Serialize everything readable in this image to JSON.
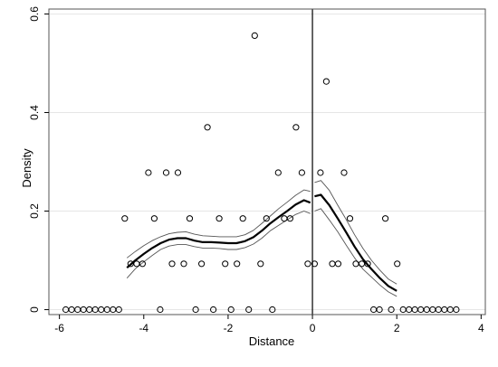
{
  "chart_data": {
    "type": "scatter",
    "title": "",
    "xlabel": "Distance",
    "ylabel": "Density",
    "xlim": [
      -6.25,
      4.1
    ],
    "ylim": [
      -0.01,
      0.61
    ],
    "xticks": [
      -6,
      -4,
      -2,
      0,
      2,
      4
    ],
    "yticks": [
      0,
      0.2,
      0.4,
      0.6
    ],
    "xtick_labels": [
      "-6",
      "-4",
      "-2",
      "0",
      "2",
      "4"
    ],
    "ytick_labels": [
      "0",
      "0.2",
      "0.4",
      "0.6"
    ],
    "grid": "horizontal",
    "cutoff_x": 0,
    "colors": {
      "points": "#000000",
      "fit": "#000000",
      "ci": "#555555",
      "grid": "#e6e6e6",
      "frame": "#555555"
    },
    "bin_points": {
      "x": [
        -5.85,
        -5.71,
        -5.57,
        -5.43,
        -5.29,
        -5.15,
        -5.01,
        -4.87,
        -4.73,
        -4.59,
        -4.45,
        -4.31,
        -4.17,
        -4.03,
        -3.89,
        -3.75,
        -3.61,
        -3.47,
        -3.33,
        -3.19,
        -3.05,
        -2.91,
        -2.77,
        -2.63,
        -2.49,
        -2.35,
        -2.21,
        -2.07,
        -1.93,
        -1.79,
        -1.65,
        -1.51,
        -1.37,
        -1.23,
        -1.09,
        -0.95,
        -0.81,
        -0.67,
        -0.53,
        -0.39,
        -0.25,
        -0.11,
        0.05,
        0.19,
        0.33,
        0.47,
        0.61,
        0.75,
        0.89,
        1.03,
        1.17,
        1.31,
        1.45,
        1.59,
        1.73,
        1.87,
        2.01,
        2.15,
        2.29,
        2.43,
        2.57,
        2.71,
        2.85,
        2.99,
        3.13,
        3.27,
        3.41
      ],
      "y": [
        0,
        0,
        0,
        0,
        0,
        0,
        0,
        0,
        0,
        0,
        0.185,
        0.093,
        0.093,
        0.093,
        0.278,
        0.185,
        0,
        0.278,
        0.093,
        0.278,
        0.093,
        0.185,
        0,
        0.093,
        0.37,
        0,
        0.185,
        0.093,
        0,
        0.093,
        0.185,
        0,
        0.556,
        0.093,
        0.185,
        0,
        0.278,
        0.185,
        0.185,
        0.37,
        0.278,
        0.093,
        0.093,
        0.278,
        0.463,
        0.093,
        0.093,
        0.278,
        0.185,
        0.093,
        0.093,
        0.093,
        0,
        0,
        0.185,
        0,
        0.093,
        0,
        0,
        0,
        0,
        0,
        0,
        0,
        0,
        0,
        0
      ]
    },
    "fit_left": {
      "x": [
        -4.4,
        -4.2,
        -4.0,
        -3.8,
        -3.6,
        -3.4,
        -3.2,
        -3.0,
        -2.8,
        -2.6,
        -2.4,
        -2.2,
        -2.0,
        -1.8,
        -1.6,
        -1.4,
        -1.2,
        -1.0,
        -0.8,
        -0.6,
        -0.4,
        -0.2,
        -0.05
      ],
      "y": [
        0.085,
        0.1,
        0.113,
        0.125,
        0.135,
        0.142,
        0.145,
        0.145,
        0.14,
        0.137,
        0.137,
        0.136,
        0.135,
        0.135,
        0.139,
        0.147,
        0.16,
        0.175,
        0.188,
        0.2,
        0.213,
        0.222,
        0.217
      ]
    },
    "ci_left_upper": {
      "x": [
        -4.4,
        -4.2,
        -4.0,
        -3.8,
        -3.6,
        -3.4,
        -3.2,
        -3.0,
        -2.8,
        -2.6,
        -2.4,
        -2.2,
        -2.0,
        -1.8,
        -1.6,
        -1.4,
        -1.2,
        -1.0,
        -0.8,
        -0.6,
        -0.4,
        -0.2,
        -0.05
      ],
      "y": [
        0.105,
        0.118,
        0.13,
        0.14,
        0.148,
        0.154,
        0.157,
        0.158,
        0.153,
        0.15,
        0.149,
        0.148,
        0.148,
        0.148,
        0.152,
        0.161,
        0.175,
        0.19,
        0.205,
        0.218,
        0.232,
        0.243,
        0.24
      ]
    },
    "ci_left_lower": {
      "x": [
        -4.4,
        -4.2,
        -4.0,
        -3.8,
        -3.6,
        -3.4,
        -3.2,
        -3.0,
        -2.8,
        -2.6,
        -2.4,
        -2.2,
        -2.0,
        -1.8,
        -1.6,
        -1.4,
        -1.2,
        -1.0,
        -0.8,
        -0.6,
        -0.4,
        -0.2,
        -0.05
      ],
      "y": [
        0.064,
        0.083,
        0.097,
        0.11,
        0.122,
        0.129,
        0.132,
        0.132,
        0.128,
        0.125,
        0.125,
        0.124,
        0.122,
        0.122,
        0.126,
        0.133,
        0.145,
        0.16,
        0.171,
        0.182,
        0.193,
        0.2,
        0.195
      ]
    },
    "fit_right": {
      "x": [
        0.05,
        0.2,
        0.4,
        0.6,
        0.8,
        1.0,
        1.2,
        1.4,
        1.6,
        1.8,
        2.0
      ],
      "y": [
        0.23,
        0.233,
        0.212,
        0.185,
        0.157,
        0.128,
        0.102,
        0.082,
        0.064,
        0.048,
        0.038
      ]
    },
    "ci_right_upper": {
      "x": [
        0.05,
        0.2,
        0.4,
        0.6,
        0.8,
        1.0,
        1.2,
        1.4,
        1.6,
        1.8,
        2.0
      ],
      "y": [
        0.258,
        0.262,
        0.242,
        0.212,
        0.183,
        0.152,
        0.124,
        0.1,
        0.08,
        0.062,
        0.052
      ]
    },
    "ci_right_lower": {
      "x": [
        0.05,
        0.2,
        0.4,
        0.6,
        0.8,
        1.0,
        1.2,
        1.4,
        1.6,
        1.8,
        2.0
      ],
      "y": [
        0.2,
        0.205,
        0.182,
        0.158,
        0.131,
        0.105,
        0.082,
        0.066,
        0.05,
        0.036,
        0.027
      ]
    }
  }
}
